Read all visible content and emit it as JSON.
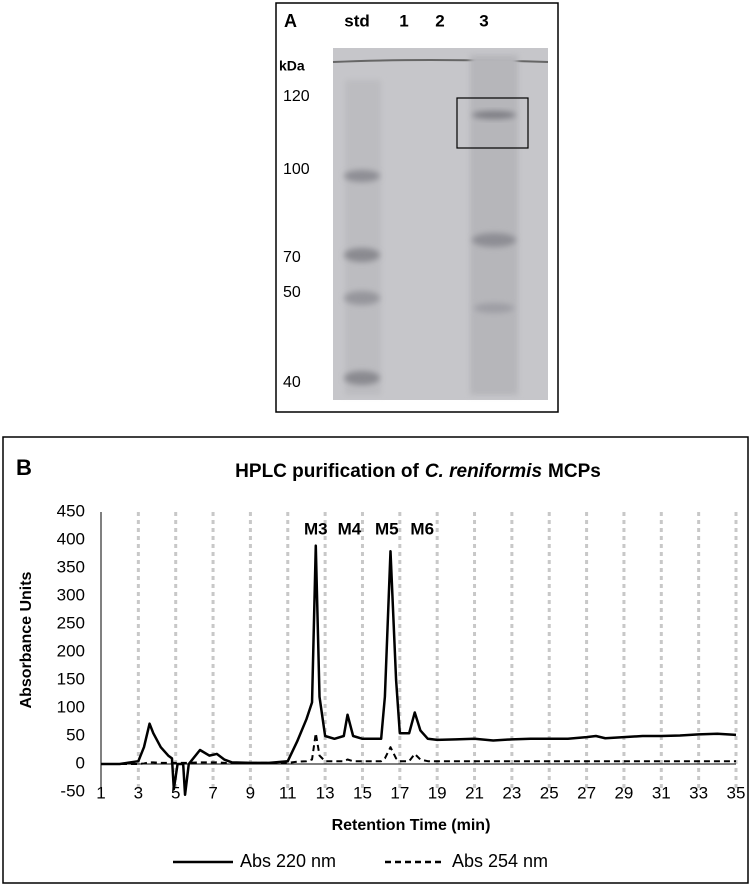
{
  "gel": {
    "panel_label": "A",
    "lanes": [
      "std",
      "1",
      "2",
      "3"
    ],
    "unit": "kDa",
    "markers": [
      "120",
      "100",
      "70",
      "50",
      "40"
    ]
  },
  "chart_data": {
    "type": "line",
    "panel_label": "B",
    "title": [
      "HPLC purification of",
      "C. reniformis",
      "MCPs"
    ],
    "x_label": "Retention Time (min)",
    "y_label": "Absorbance Units",
    "x": [
      1,
      2,
      3,
      3.3,
      3.6,
      3.8,
      4.2,
      4.6,
      4.8,
      4.9,
      5.1,
      5.4,
      5.5,
      5.7,
      6.3,
      6.8,
      7.2,
      7.6,
      8,
      9,
      10,
      11,
      11.5,
      12,
      12.3,
      12.5,
      12.7,
      13,
      13.5,
      14,
      14.2,
      14.5,
      15,
      16,
      16.2,
      16.5,
      16.8,
      17,
      17.5,
      17.8,
      18.1,
      18.5,
      19,
      20,
      21,
      22,
      23,
      24,
      25,
      26,
      27,
      27.5,
      28,
      29,
      30,
      31,
      32,
      33,
      34,
      35
    ],
    "series": [
      {
        "name": "Abs 220 nm",
        "color": "#000000",
        "dashed": false,
        "values": [
          0,
          0,
          5,
          30,
          72,
          55,
          30,
          15,
          10,
          -45,
          0,
          0,
          -55,
          0,
          25,
          15,
          18,
          8,
          3,
          2,
          2,
          5,
          40,
          80,
          110,
          390,
          120,
          50,
          45,
          50,
          88,
          50,
          45,
          45,
          120,
          380,
          150,
          55,
          55,
          92,
          60,
          45,
          43,
          44,
          45,
          42,
          44,
          45,
          45,
          45,
          48,
          50,
          46,
          48,
          50,
          50,
          51,
          53,
          54,
          52
        ]
      },
      {
        "name": "Abs 254 nm",
        "color": "#000000",
        "dashed": true,
        "values": [
          0,
          0,
          0,
          1,
          3,
          3,
          2,
          2,
          2,
          2,
          2,
          2,
          2,
          2,
          3,
          3,
          3,
          2,
          2,
          2,
          2,
          2,
          4,
          5,
          8,
          55,
          15,
          5,
          5,
          5,
          8,
          5,
          5,
          5,
          10,
          30,
          10,
          5,
          5,
          18,
          8,
          5,
          5,
          5,
          5,
          5,
          5,
          5,
          5,
          5,
          5,
          5,
          5,
          5,
          5,
          5,
          5,
          5,
          5,
          5
        ]
      }
    ],
    "annotations": [
      {
        "text": "M3",
        "x": 12.5,
        "y": 418
      },
      {
        "text": "M4",
        "x": 14.3,
        "y": 418
      },
      {
        "text": "M5",
        "x": 16.3,
        "y": 418
      },
      {
        "text": "M6",
        "x": 18.2,
        "y": 418
      }
    ],
    "xlim": [
      1,
      35
    ],
    "xticks": [
      1,
      3,
      5,
      7,
      9,
      11,
      13,
      15,
      17,
      19,
      21,
      23,
      25,
      27,
      29,
      31,
      33,
      35
    ],
    "ylim": [
      -50,
      450
    ],
    "yticks": [
      -50,
      0,
      50,
      100,
      150,
      200,
      250,
      300,
      350,
      400,
      450
    ],
    "grid_x": true,
    "grid_color": "#c8c8c8",
    "legend": "bottom"
  }
}
